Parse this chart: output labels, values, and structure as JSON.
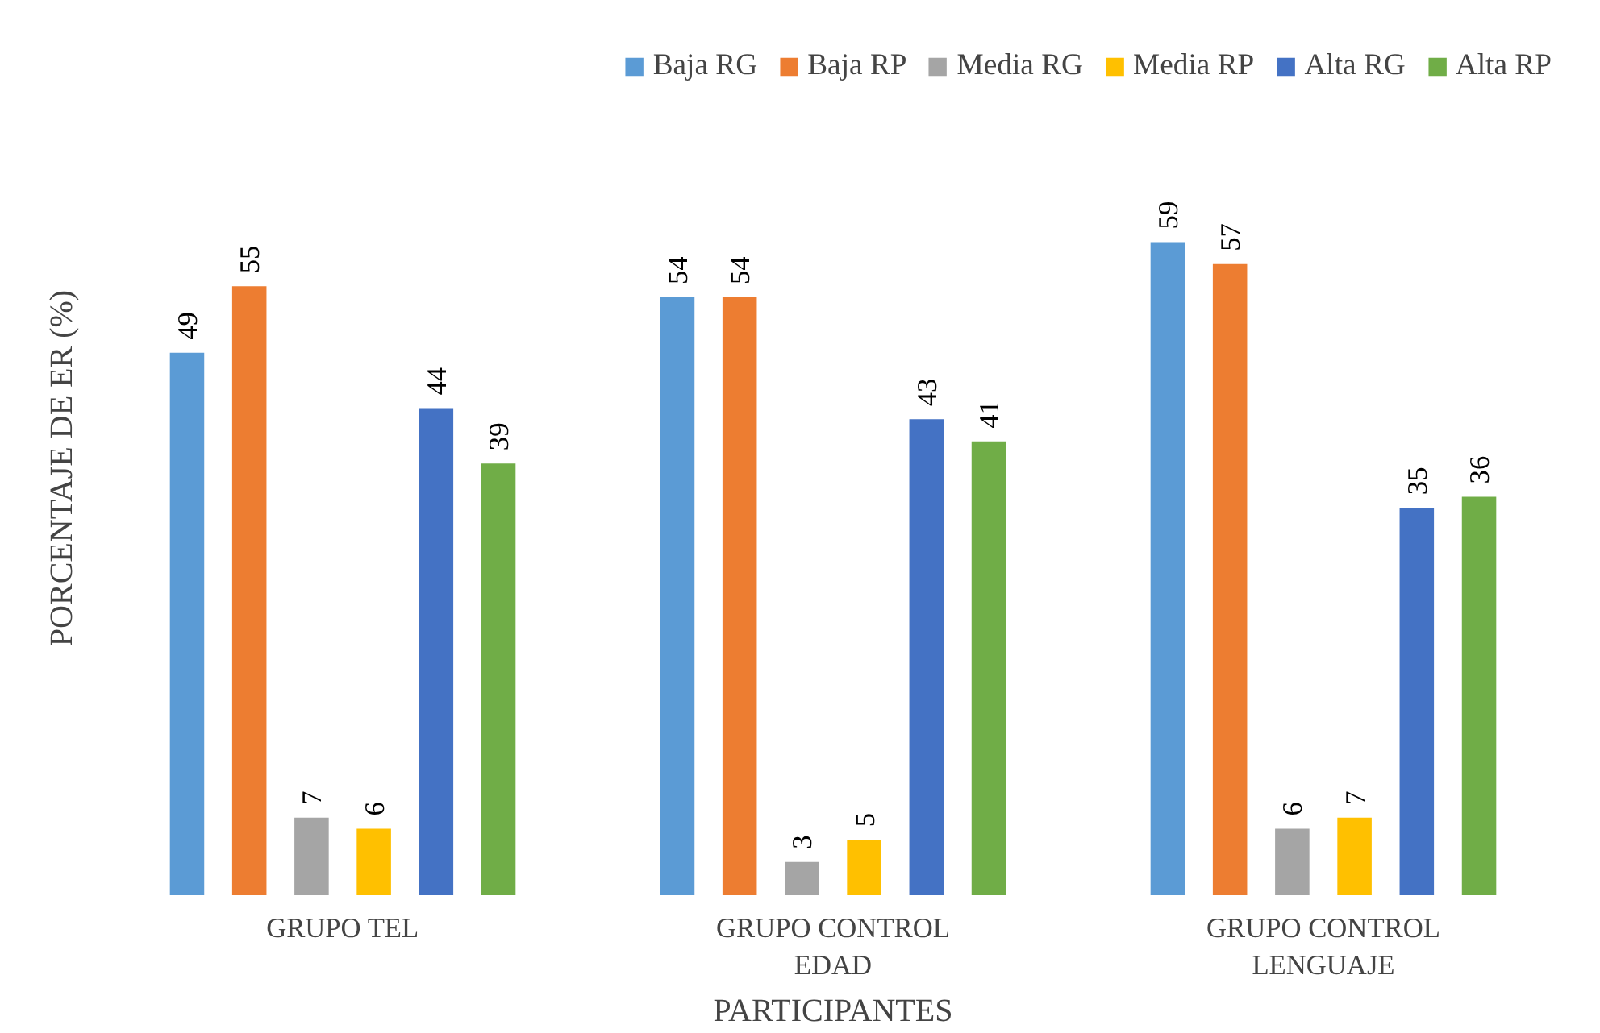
{
  "chart_data": {
    "type": "bar",
    "xlabel": "PARTICIPANTES",
    "ylabel": "PORCENTAJE DE ER  (%)",
    "categories": [
      "GRUPO TEL",
      "GRUPO CONTROL\nEDAD",
      "GRUPO CONTROL\nLENGUAJE"
    ],
    "series": [
      {
        "name": "Baja RG",
        "color": "#5b9bd5",
        "values": [
          49,
          54,
          59
        ]
      },
      {
        "name": "Baja RP",
        "color": "#ed7d31",
        "values": [
          55,
          54,
          57
        ]
      },
      {
        "name": "Media RG",
        "color": "#a5a5a5",
        "values": [
          7,
          3,
          6
        ]
      },
      {
        "name": "Media RP",
        "color": "#ffc000",
        "values": [
          6,
          5,
          7
        ]
      },
      {
        "name": "Alta RG",
        "color": "#4472c4",
        "values": [
          44,
          43,
          35
        ]
      },
      {
        "name": "Alta RP",
        "color": "#70ad47",
        "values": [
          39,
          41,
          36
        ]
      }
    ],
    "data_labels": true,
    "legend": "top",
    "grid": false,
    "tick_labels": "x"
  }
}
